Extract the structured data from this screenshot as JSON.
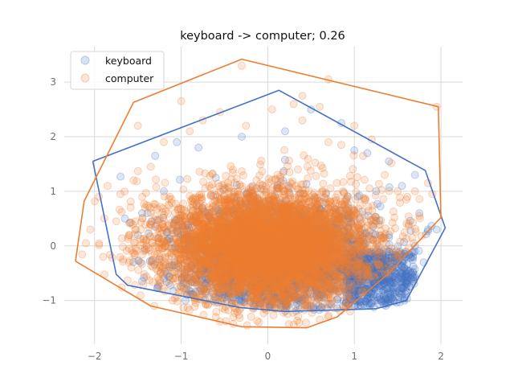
{
  "chart_data": {
    "type": "scatter",
    "title": "keyboard -> computer; 0.26",
    "xlabel": "",
    "ylabel": "",
    "xlim": [
      -2.35,
      2.25
    ],
    "ylim": [
      -1.8,
      3.65
    ],
    "xticks": [
      -2,
      -1,
      0,
      1,
      2
    ],
    "yticks": [
      -1,
      0,
      1,
      2,
      3
    ],
    "grid": true,
    "legend_position": "top-left",
    "series": [
      {
        "name": "keyboard",
        "color": "#4472c4",
        "point_count": 3000,
        "cloud": {
          "cx": 0.1,
          "cy": -0.2,
          "sx": 0.55,
          "sy": 0.45
        },
        "hull": [
          [
            -2.02,
            1.55
          ],
          [
            -1.75,
            -0.52
          ],
          [
            -1.62,
            -0.72
          ],
          [
            -0.32,
            -1.13
          ],
          [
            0.2,
            -1.2
          ],
          [
            1.25,
            -1.15
          ],
          [
            1.6,
            -1.0
          ],
          [
            2.05,
            0.33
          ],
          [
            1.82,
            1.38
          ],
          [
            0.13,
            2.85
          ],
          [
            -2.02,
            1.55
          ]
        ],
        "outliers": [
          [
            -1.7,
            1.27
          ],
          [
            -1.65,
            0.5
          ],
          [
            -1.5,
            0.2
          ],
          [
            -1.45,
            0.6
          ],
          [
            -1.3,
            0.35
          ],
          [
            -1.2,
            1.0
          ],
          [
            -1.05,
            1.9
          ],
          [
            -1.3,
            1.65
          ],
          [
            -0.8,
            1.8
          ],
          [
            -0.6,
            1.25
          ],
          [
            -0.3,
            2.0
          ],
          [
            0.2,
            2.1
          ],
          [
            0.5,
            2.5
          ],
          [
            0.85,
            2.25
          ],
          [
            1.0,
            1.75
          ],
          [
            1.15,
            1.7
          ],
          [
            1.4,
            1.55
          ],
          [
            1.55,
            1.1
          ],
          [
            1.7,
            1.3
          ],
          [
            1.75,
            0.6
          ],
          [
            1.85,
            0.3
          ],
          [
            1.95,
            0.3
          ],
          [
            1.7,
            0.0
          ],
          [
            1.8,
            -0.3
          ],
          [
            1.55,
            -0.5
          ],
          [
            1.45,
            -0.8
          ],
          [
            1.35,
            -1.0
          ],
          [
            1.2,
            -1.05
          ],
          [
            0.95,
            -0.95
          ],
          [
            0.5,
            -1.1
          ],
          [
            -0.5,
            -0.95
          ],
          [
            -1.0,
            -0.75
          ],
          [
            -1.2,
            -0.6
          ],
          [
            -1.45,
            -0.65
          ],
          [
            -0.95,
            -1.0
          ],
          [
            1.2,
            -0.4
          ],
          [
            1.3,
            -0.2
          ],
          [
            1.4,
            0.2
          ],
          [
            1.5,
            -0.3
          ],
          [
            1.6,
            -0.75
          ]
        ]
      },
      {
        "name": "computer",
        "color": "#ed7d31",
        "point_count": 5500,
        "cloud": {
          "cx": 0.0,
          "cy": 0.0,
          "sx": 0.6,
          "sy": 0.5
        },
        "hull": [
          [
            -2.22,
            -0.28
          ],
          [
            -2.12,
            0.82
          ],
          [
            -1.55,
            2.63
          ],
          [
            -0.3,
            3.42
          ],
          [
            1.97,
            2.55
          ],
          [
            2.0,
            0.52
          ],
          [
            1.4,
            -0.5
          ],
          [
            0.8,
            -1.3
          ],
          [
            0.45,
            -1.5
          ],
          [
            -0.3,
            -1.48
          ],
          [
            -1.35,
            -1.1
          ],
          [
            -2.22,
            -0.28
          ]
        ],
        "outliers": [
          [
            -2.1,
            0.05
          ],
          [
            -1.95,
            0.9
          ],
          [
            -1.85,
            1.1
          ],
          [
            -1.75,
            0.45
          ],
          [
            -1.7,
            0.95
          ],
          [
            -1.6,
            0.2
          ],
          [
            -1.55,
            1.2
          ],
          [
            -1.5,
            2.2
          ],
          [
            -1.4,
            0.75
          ],
          [
            -1.35,
            1.45
          ],
          [
            -1.25,
            -0.35
          ],
          [
            -1.2,
            1.9
          ],
          [
            -1.0,
            2.65
          ],
          [
            -0.9,
            2.1
          ],
          [
            -0.75,
            2.3
          ],
          [
            -0.55,
            2.45
          ],
          [
            -0.3,
            3.3
          ],
          [
            -0.25,
            2.2
          ],
          [
            0.05,
            2.5
          ],
          [
            0.3,
            2.6
          ],
          [
            0.4,
            2.3
          ],
          [
            0.6,
            2.55
          ],
          [
            0.7,
            1.9
          ],
          [
            0.85,
            1.85
          ],
          [
            1.0,
            2.2
          ],
          [
            1.1,
            1.65
          ],
          [
            1.2,
            1.95
          ],
          [
            1.35,
            1.3
          ],
          [
            1.5,
            1.0
          ],
          [
            1.6,
            0.85
          ],
          [
            1.7,
            1.0
          ],
          [
            1.75,
            0.55
          ],
          [
            1.85,
            1.15
          ],
          [
            1.9,
            0.95
          ],
          [
            1.95,
            2.55
          ],
          [
            1.2,
            -0.55
          ],
          [
            0.95,
            -1.2
          ],
          [
            0.6,
            -1.35
          ],
          [
            -0.1,
            -1.4
          ],
          [
            -0.6,
            -1.3
          ],
          [
            -1.1,
            -1.0
          ],
          [
            -1.6,
            -0.3
          ],
          [
            -1.9,
            -0.2
          ],
          [
            -2.05,
            0.3
          ],
          [
            0.7,
            3.05
          ],
          [
            0.4,
            2.75
          ]
        ]
      }
    ]
  }
}
